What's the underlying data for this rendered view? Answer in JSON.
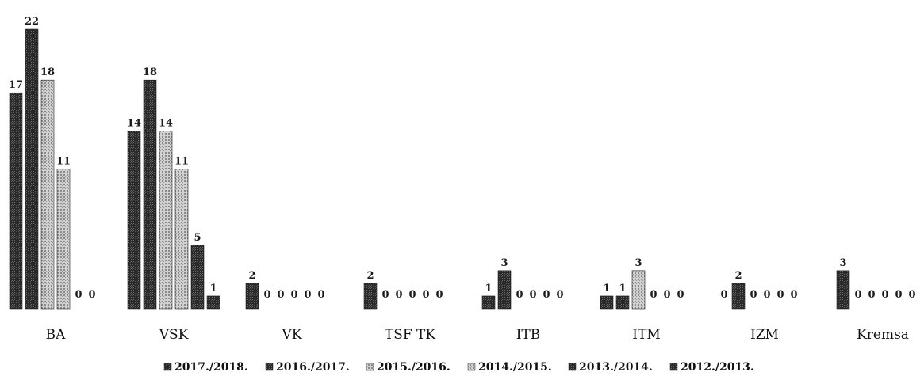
{
  "chart_data": {
    "type": "bar",
    "title": "",
    "xlabel": "",
    "ylabel": "",
    "categories": [
      "BA",
      "VSK",
      "VK",
      "TSF TK",
      "ITB",
      "ITM",
      "IZM",
      "Kremsa"
    ],
    "series": [
      {
        "name": "2017./2018.",
        "values": [
          17,
          14,
          2,
          2,
          1,
          1,
          0,
          3
        ],
        "color": "#2b2b2b",
        "pattern": "dense"
      },
      {
        "name": "2016./2017.",
        "values": [
          22,
          18,
          0,
          0,
          3,
          1,
          2,
          0
        ],
        "color": "#3a3a3a",
        "pattern": "dense"
      },
      {
        "name": "2015./2016.",
        "values": [
          18,
          14,
          0,
          0,
          0,
          3,
          0,
          0
        ],
        "color": "#bdbdbd",
        "pattern": "light"
      },
      {
        "name": "2014./2015.",
        "values": [
          11,
          11,
          0,
          0,
          0,
          0,
          0,
          0
        ],
        "color": "#d6d6d6",
        "pattern": "light"
      },
      {
        "name": "2013./2014.",
        "values": [
          0,
          5,
          0,
          0,
          0,
          0,
          0,
          0
        ],
        "color": "#333333",
        "pattern": "dense"
      },
      {
        "name": "2012./2013.",
        "values": [
          0,
          1,
          0,
          0,
          0,
          0,
          0,
          0
        ],
        "color": "#4a4a4a",
        "pattern": "dense"
      }
    ],
    "ylim": [
      0,
      22
    ],
    "grid": false,
    "legend_position": "bottom"
  }
}
